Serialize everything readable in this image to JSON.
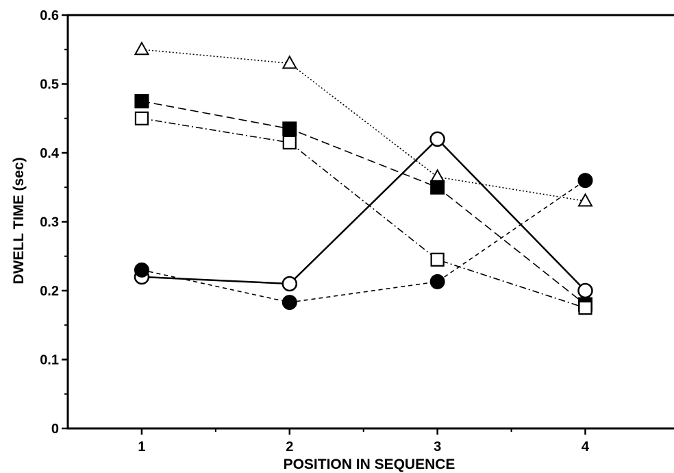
{
  "chart_data": {
    "type": "line",
    "title": "",
    "xlabel": "POSITION IN SEQUENCE",
    "ylabel": "DWELL TIME (sec)",
    "x": [
      1,
      2,
      3,
      4
    ],
    "xticks": [
      "1",
      "2",
      "3",
      "4"
    ],
    "yticks": [
      "0",
      "0.1",
      "0.2",
      "0.3",
      "0.4",
      "0.5",
      "0.6"
    ],
    "xlim": [
      0.5,
      4.6
    ],
    "ylim": [
      0,
      0.6
    ],
    "grid": false,
    "legend": "none",
    "series": [
      {
        "marker": "open-triangle",
        "line": "dotted",
        "values": [
          0.55,
          0.53,
          0.365,
          0.33
        ]
      },
      {
        "marker": "filled-square",
        "line": "dashed",
        "values": [
          0.475,
          0.435,
          0.35,
          0.18
        ]
      },
      {
        "marker": "open-square",
        "line": "dash-dot",
        "values": [
          0.45,
          0.415,
          0.245,
          0.175
        ]
      },
      {
        "marker": "open-circle",
        "line": "solid",
        "values": [
          0.22,
          0.21,
          0.42,
          0.2
        ]
      },
      {
        "marker": "filled-circle",
        "line": "short-dashed",
        "values": [
          0.23,
          0.183,
          0.213,
          0.36
        ]
      }
    ]
  }
}
